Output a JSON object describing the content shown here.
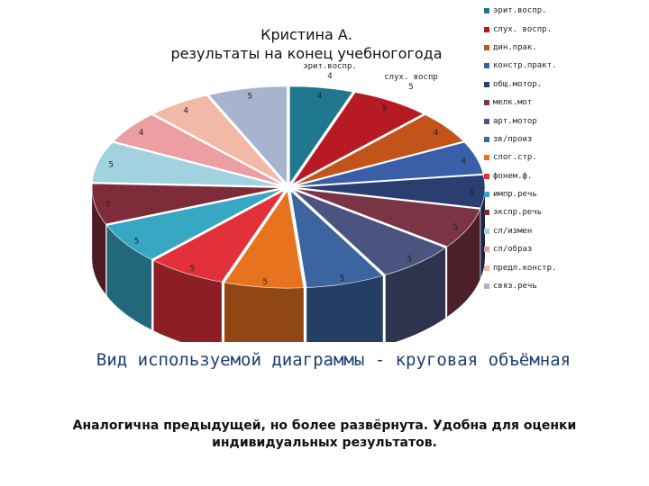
{
  "chart_data": {
    "type": "pie",
    "variant": "3d-exploded",
    "title_lines": [
      "Кристина А.",
      "результаты на конец учебногогода"
    ],
    "categories": [
      "эрит.воспр.",
      "слух. воспр.",
      "дин.прак.",
      "констр.практ.",
      "общ.мотор.",
      "мелк.мот",
      "арт.мотор",
      "зв/произ",
      "слог.стр.",
      "фонем.ф.",
      "импр.речь",
      "экспр.речь",
      "сл/измен",
      "сл/образ",
      "предл.констр.",
      "связ.речь"
    ],
    "values": [
      4,
      5,
      4,
      4,
      4,
      5,
      5,
      5,
      5,
      5,
      5,
      5,
      5,
      4,
      4,
      5
    ],
    "colors": [
      "#1f7890",
      "#b81a24",
      "#c2541a",
      "#3a5ea8",
      "#2b3e72",
      "#7a3446",
      "#4a547e",
      "#3c64a0",
      "#e8731e",
      "#e2313a",
      "#37a7c4",
      "#7e2c3a",
      "#a2d2e0",
      "#ec9ea2",
      "#f1b9a6",
      "#a8b4cf"
    ],
    "callouts": [
      {
        "text": "эрит.воспр.",
        "value": "4"
      },
      {
        "text": "слух. воспр",
        "value": "5"
      }
    ],
    "legend_position": "right"
  },
  "footer": {
    "heading": "Вид используемой диаграммы - круговая объёмная",
    "text": "Аналогична предыдущей, но более развёрнута. Удобна для оценки индивидуальных результатов."
  }
}
